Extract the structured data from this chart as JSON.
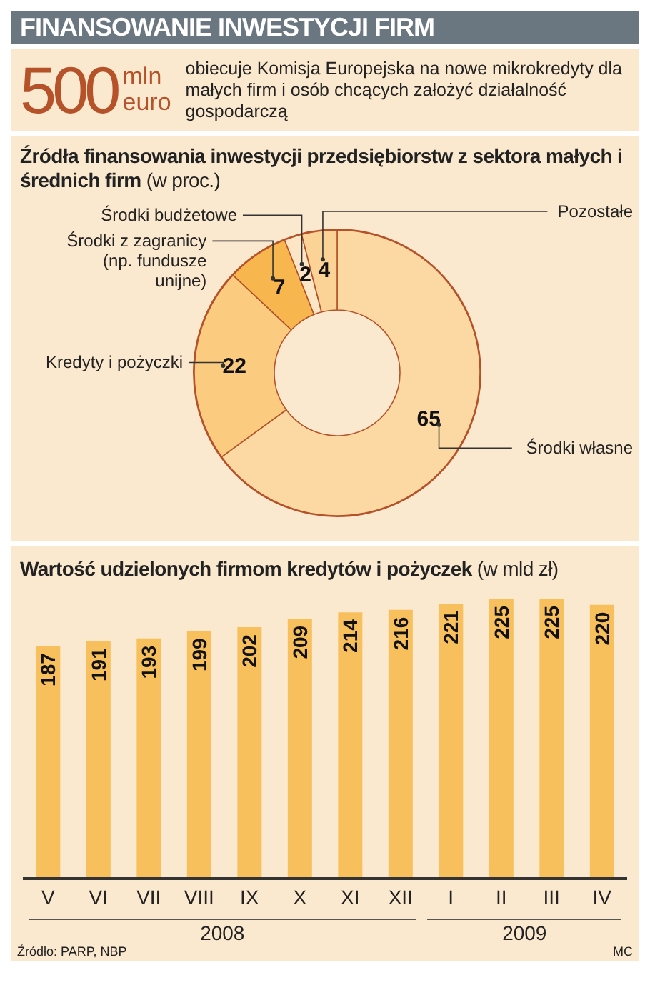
{
  "chart_data": [
    {
      "type": "other",
      "title": "FINANSOWANIE INWESTYCJI FIRM",
      "annotations": [
        "500",
        "mln",
        "euro",
        "obiecuje Komisja Europejska na nowe mikrokredyty dla małych firm i osób chcących założyć działalność gospodarczą"
      ]
    },
    {
      "type": "donut",
      "title": "Źródła finansowania inwestycji przedsiębiorstw z sektora małych i średnich firm",
      "subtitle": "(w proc.)",
      "categories": [
        "Środki własne",
        "Kredyty i pożyczki",
        "Środki z zagranicy (np. fundusze unijne)",
        "Środki budżetowe",
        "Pozostałe"
      ],
      "values": [
        65,
        22,
        7,
        2,
        4
      ],
      "colors": [
        "#fcd9a2",
        "#fbcb80",
        "#f7b64e",
        "#fde6c6",
        "#fbd396"
      ],
      "data_labels": true
    },
    {
      "type": "bar",
      "title": "Wartość udzielonych firmom kredytów i pożyczek",
      "subtitle": "(w mld zł)",
      "categories": [
        "V",
        "VI",
        "VII",
        "VIII",
        "IX",
        "X",
        "XI",
        "XII",
        "I",
        "II",
        "III",
        "IV"
      ],
      "values": [
        187,
        191,
        193,
        199,
        202,
        209,
        214,
        216,
        221,
        225,
        225,
        220
      ],
      "color": "#f8c05c",
      "data_labels": true,
      "annotations": [
        "2008",
        "2009",
        "Źródło: PARP, NBP",
        "MC"
      ]
    }
  ]
}
